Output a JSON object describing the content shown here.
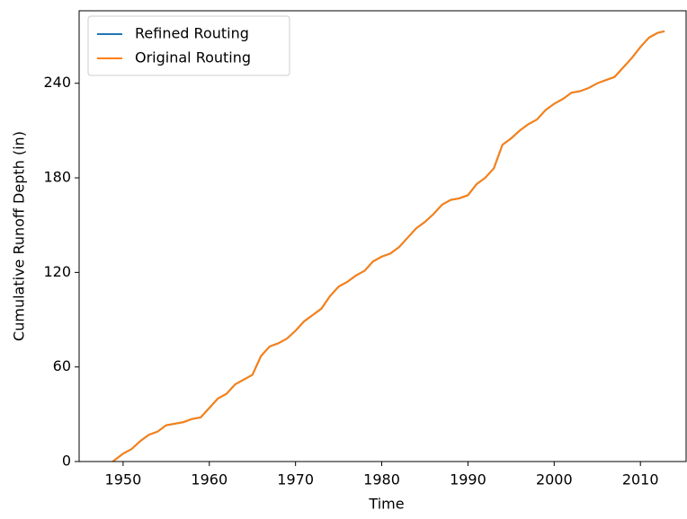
{
  "chart_data": {
    "type": "line",
    "xlabel": "Time",
    "ylabel": "Cumulative Runoff Depth (in)",
    "x": [
      1948.8,
      1950,
      1951,
      1952,
      1953,
      1954,
      1955,
      1956,
      1957,
      1958,
      1959,
      1960,
      1961,
      1962,
      1963,
      1964,
      1965,
      1966,
      1967,
      1968,
      1969,
      1970,
      1971,
      1972,
      1973,
      1974,
      1975,
      1976,
      1977,
      1978,
      1979,
      1980,
      1981,
      1982,
      1983,
      1984,
      1985,
      1986,
      1987,
      1988,
      1989,
      1990,
      1991,
      1992,
      1993,
      1994,
      1995,
      1996,
      1997,
      1998,
      1999,
      2000,
      2001,
      2002,
      2003,
      2004,
      2005,
      2006,
      2007,
      2008,
      2009,
      2010,
      2011,
      2012,
      2012.8
    ],
    "series": [
      {
        "name": "Refined Routing",
        "color": "#1f77b4",
        "values": [
          0,
          5,
          8,
          13,
          17,
          19,
          23,
          24,
          25,
          27,
          28,
          34,
          40,
          43,
          49,
          52,
          55,
          67,
          73,
          75,
          78,
          83,
          89,
          93,
          97,
          105,
          111,
          114,
          118,
          121,
          127,
          130,
          132,
          136,
          142,
          148,
          152,
          157,
          163,
          166,
          167,
          169,
          176,
          180,
          186,
          201,
          205,
          210,
          214,
          217,
          223,
          227,
          230,
          234,
          235,
          237,
          240,
          242,
          244,
          250,
          256,
          263,
          269,
          272,
          273
        ]
      },
      {
        "name": "Original Routing",
        "color": "#ff7f0e",
        "values": [
          0,
          5,
          8,
          13,
          17,
          19,
          23,
          24,
          25,
          27,
          28,
          34,
          40,
          43,
          49,
          52,
          55,
          67,
          73,
          75,
          78,
          83,
          89,
          93,
          97,
          105,
          111,
          114,
          118,
          121,
          127,
          130,
          132,
          136,
          142,
          148,
          152,
          157,
          163,
          166,
          167,
          169,
          176,
          180,
          186,
          201,
          205,
          210,
          214,
          217,
          223,
          227,
          230,
          234,
          235,
          237,
          240,
          242,
          244,
          250,
          256,
          263,
          269,
          272,
          273
        ]
      }
    ],
    "xlim": [
      1944.9,
      2015.3
    ],
    "xticks": [
      1950,
      1960,
      1970,
      1980,
      1990,
      2000,
      2010
    ],
    "ylim": [
      0,
      286
    ],
    "yticks": [
      0,
      60,
      120,
      180,
      240
    ],
    "legend": "upper left"
  }
}
